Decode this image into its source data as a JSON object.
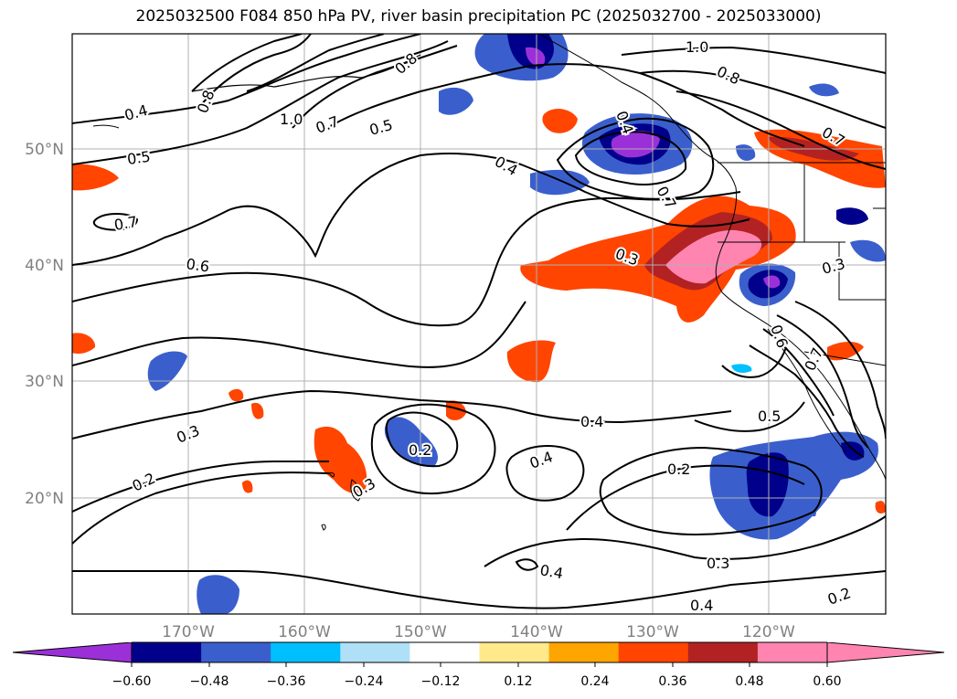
{
  "title": "2025032500 F084 850 hPa PV, river basin precipitation PC (2025032700 - 2025033000)",
  "map": {
    "lat_ticks": [
      "50°N",
      "40°N",
      "30°N",
      "20°N"
    ],
    "lon_ticks": [
      "170°W",
      "160°W",
      "150°W",
      "140°W",
      "130°W",
      "120°W"
    ],
    "contour_labels": [
      "0.4",
      "0.5",
      "0.7",
      "0.6",
      "0.3",
      "0.2",
      "1.0",
      "0.7",
      "0.5",
      "0.4",
      "0.8",
      "1.0",
      "0.8",
      "0.7",
      "0.3",
      "0.3",
      "0.4",
      "0.4",
      "0.2",
      "0.3",
      "0.5",
      "0.4",
      "0.4",
      "0.2",
      "0.2",
      "0.3",
      "0.4",
      "0.6",
      "0.7",
      "0.8",
      "0.7"
    ]
  },
  "colorbar": {
    "ticks": [
      "−0.60",
      "−0.48",
      "−0.36",
      "−0.24",
      "−0.12",
      "0.12",
      "0.24",
      "0.36",
      "0.48",
      "0.60"
    ],
    "colors": [
      "#9b30d9",
      "#00008b",
      "#3a5fcd",
      "#00bfff",
      "#b0e0f8",
      "#ffffff",
      "#ffe98a",
      "#ffa500",
      "#ff4500",
      "#b22222",
      "#ff85b0",
      "#ff85b0"
    ]
  }
}
